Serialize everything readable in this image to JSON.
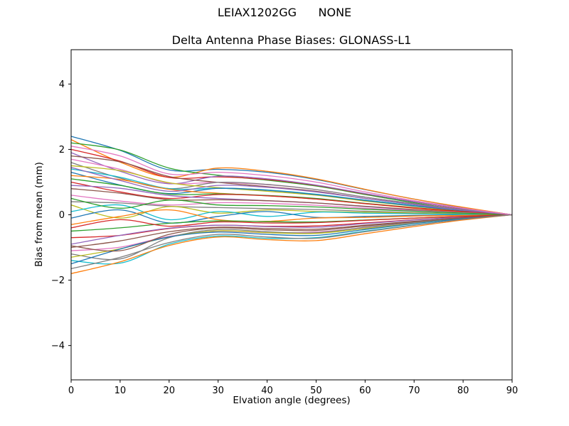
{
  "figure": {
    "suptitle": "LEIAX1202GG      NONE"
  },
  "chart_data": {
    "type": "line",
    "title": "Delta Antenna Phase Biases: GLONASS-L1",
    "xlabel": "Elvation angle (degrees)",
    "ylabel": "Bias from mean (mm)",
    "xlim": [
      0,
      90
    ],
    "ylim": [
      -5.05,
      5.05
    ],
    "xticks": [
      0,
      10,
      20,
      30,
      40,
      50,
      60,
      70,
      80,
      90
    ],
    "yticks": [
      -4,
      -2,
      0,
      2,
      4
    ],
    "grid": false,
    "legend": "none",
    "x": [
      0,
      10,
      20,
      30,
      40,
      50,
      60,
      70,
      80,
      90
    ],
    "series": [
      {
        "color": "#1f77b4",
        "values": [
          2.4,
          1.97,
          1.37,
          1.39,
          1.3,
          1.08,
          0.77,
          0.48,
          0.22,
          0
        ]
      },
      {
        "color": "#ff7f0e",
        "values": [
          2.3,
          1.61,
          1.15,
          1.43,
          1.33,
          1.1,
          0.78,
          0.48,
          0.23,
          0
        ]
      },
      {
        "color": "#2ca02c",
        "values": [
          2.2,
          1.98,
          1.43,
          1.21,
          1.06,
          0.88,
          0.62,
          0.37,
          0.15,
          0
        ]
      },
      {
        "color": "#d62728",
        "values": [
          2.0,
          1.64,
          1.14,
          1.16,
          1.08,
          0.9,
          0.64,
          0.4,
          0.18,
          0
        ]
      },
      {
        "color": "#9467bd",
        "values": [
          1.9,
          1.33,
          0.95,
          1.18,
          1.1,
          0.91,
          0.65,
          0.4,
          0.19,
          0
        ]
      },
      {
        "color": "#8c564b",
        "values": [
          1.8,
          1.62,
          1.17,
          0.99,
          0.86,
          0.72,
          0.5,
          0.31,
          0.13,
          0
        ]
      },
      {
        "color": "#e377c2",
        "values": [
          1.7,
          1.39,
          0.97,
          0.99,
          0.92,
          0.77,
          0.54,
          0.34,
          0.15,
          0
        ]
      },
      {
        "color": "#7f7f7f",
        "values": [
          1.6,
          1.12,
          0.8,
          0.99,
          0.93,
          0.77,
          0.54,
          0.34,
          0.16,
          0
        ]
      },
      {
        "color": "#bcbd22",
        "values": [
          1.5,
          1.35,
          0.98,
          0.83,
          0.72,
          0.6,
          0.42,
          0.26,
          0.11,
          0
        ]
      },
      {
        "color": "#17becf",
        "values": [
          1.4,
          1.15,
          0.8,
          0.81,
          0.76,
          0.63,
          0.45,
          0.28,
          0.13,
          0
        ]
      },
      {
        "color": "#1f77b4",
        "values": [
          1.3,
          0.91,
          0.65,
          0.81,
          0.75,
          0.62,
          0.44,
          0.27,
          0.13,
          0
        ]
      },
      {
        "color": "#ff7f0e",
        "values": [
          1.2,
          1.08,
          0.78,
          0.66,
          0.58,
          0.48,
          0.34,
          0.2,
          0.08,
          0
        ]
      },
      {
        "color": "#2ca02c",
        "values": [
          1.1,
          0.9,
          0.63,
          0.64,
          0.59,
          0.5,
          0.35,
          0.22,
          0.1,
          0
        ]
      },
      {
        "color": "#d62728",
        "values": [
          1.0,
          0.7,
          0.5,
          0.62,
          0.58,
          0.48,
          0.34,
          0.21,
          0.1,
          0
        ]
      },
      {
        "color": "#9467bd",
        "values": [
          0.9,
          0.81,
          0.59,
          0.5,
          0.43,
          0.36,
          0.25,
          0.15,
          0.06,
          0
        ]
      },
      {
        "color": "#8c564b",
        "values": [
          0.8,
          0.66,
          0.46,
          0.46,
          0.43,
          0.36,
          0.26,
          0.16,
          0.07,
          0
        ]
      },
      {
        "color": "#e377c2",
        "values": [
          0.6,
          0.42,
          0.3,
          0.37,
          0.35,
          0.29,
          0.2,
          0.13,
          0.06,
          0
        ]
      },
      {
        "color": "#7f7f7f",
        "values": [
          0.4,
          0.36,
          0.26,
          0.22,
          0.19,
          0.16,
          0.11,
          0.07,
          0.03,
          0
        ]
      },
      {
        "color": "#bcbd22",
        "values": [
          0.3,
          -0.1,
          0.25,
          0.05,
          0.15,
          0.1,
          0.08,
          0.05,
          0.02,
          0
        ]
      },
      {
        "color": "#17becf",
        "values": [
          0.1,
          0.3,
          -0.15,
          0.1,
          -0.05,
          0.08,
          0.05,
          0.03,
          0.01,
          0
        ]
      },
      {
        "color": "#1f77b4",
        "values": [
          -0.1,
          0.15,
          -0.25,
          -0.05,
          0.1,
          -0.08,
          -0.05,
          -0.02,
          -0.01,
          0
        ]
      },
      {
        "color": "#ff7f0e",
        "values": [
          -0.3,
          -0.05,
          0.15,
          -0.15,
          -0.2,
          -0.1,
          -0.08,
          -0.04,
          -0.02,
          0
        ]
      },
      {
        "color": "#2ca02c",
        "values": [
          -0.5,
          -0.4,
          -0.26,
          -0.19,
          -0.21,
          -0.22,
          -0.16,
          -0.1,
          -0.05,
          0
        ]
      },
      {
        "color": "#d62728",
        "values": [
          -0.7,
          -0.63,
          -0.42,
          -0.32,
          -0.35,
          -0.34,
          -0.25,
          -0.15,
          -0.07,
          0
        ]
      },
      {
        "color": "#9467bd",
        "values": [
          -0.9,
          -0.63,
          -0.41,
          -0.32,
          -0.36,
          -0.38,
          -0.27,
          -0.16,
          -0.07,
          0
        ]
      },
      {
        "color": "#8c564b",
        "values": [
          -1.0,
          -0.8,
          -0.52,
          -0.38,
          -0.42,
          -0.44,
          -0.32,
          -0.2,
          -0.09,
          0
        ]
      },
      {
        "color": "#e377c2",
        "values": [
          -1.1,
          -0.99,
          -0.66,
          -0.5,
          -0.55,
          -0.53,
          -0.39,
          -0.24,
          -0.11,
          0
        ]
      },
      {
        "color": "#7f7f7f",
        "values": [
          -1.2,
          -1.35,
          -0.7,
          -0.45,
          -0.52,
          -0.55,
          -0.38,
          -0.23,
          -0.1,
          0
        ]
      },
      {
        "color": "#bcbd22",
        "values": [
          -1.3,
          -1.04,
          -0.68,
          -0.49,
          -0.55,
          -0.57,
          -0.42,
          -0.26,
          -0.12,
          0
        ]
      },
      {
        "color": "#17becf",
        "values": [
          -1.4,
          -1.48,
          -0.9,
          -0.65,
          -0.72,
          -0.7,
          -0.5,
          -0.31,
          -0.14,
          0
        ]
      },
      {
        "color": "#1f77b4",
        "values": [
          -1.5,
          -1.05,
          -0.68,
          -0.53,
          -0.6,
          -0.63,
          -0.45,
          -0.27,
          -0.12,
          0
        ]
      },
      {
        "color": "#ff7f0e",
        "values": [
          -1.8,
          -1.44,
          -0.94,
          -0.68,
          -0.76,
          -0.79,
          -0.58,
          -0.36,
          -0.16,
          0
        ]
      },
      {
        "color": "#2ca02c",
        "values": [
          0.5,
          0.2,
          0.45,
          0.3,
          0.28,
          0.24,
          0.17,
          0.11,
          0.05,
          0
        ]
      },
      {
        "color": "#d62728",
        "values": [
          -0.4,
          -0.15,
          -0.35,
          -0.22,
          -0.25,
          -0.24,
          -0.17,
          -0.1,
          -0.05,
          0
        ]
      },
      {
        "color": "#9467bd",
        "values": [
          1.45,
          1.05,
          0.72,
          0.9,
          0.84,
          0.7,
          0.5,
          0.31,
          0.14,
          0
        ]
      },
      {
        "color": "#8c564b",
        "values": [
          -0.95,
          -1.1,
          -0.6,
          -0.4,
          -0.46,
          -0.48,
          -0.34,
          -0.21,
          -0.09,
          0
        ]
      },
      {
        "color": "#e377c2",
        "values": [
          2.1,
          1.8,
          1.25,
          1.3,
          1.2,
          1.0,
          0.7,
          0.43,
          0.2,
          0
        ]
      },
      {
        "color": "#7f7f7f",
        "values": [
          -1.65,
          -1.3,
          -0.85,
          -0.6,
          -0.68,
          -0.72,
          -0.52,
          -0.32,
          -0.14,
          0
        ]
      }
    ]
  }
}
